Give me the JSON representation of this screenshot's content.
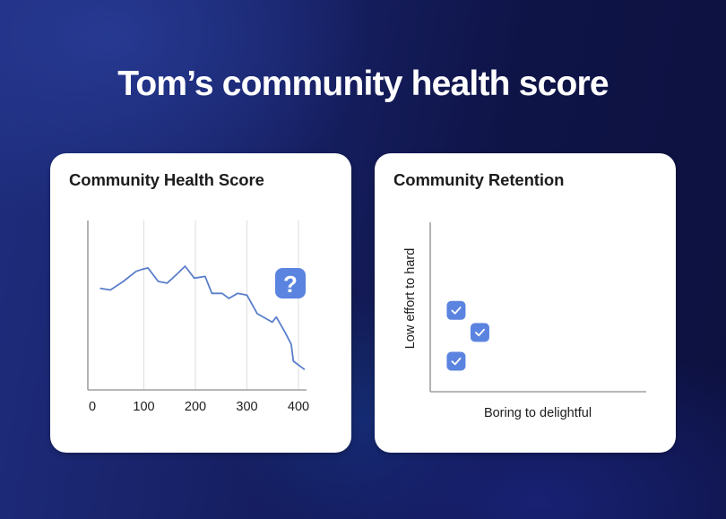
{
  "page": {
    "title": "Tom’s community health score"
  },
  "colors": {
    "accent": "#5B84E0",
    "line": "#5A7ECB",
    "axis": "#9a9a9a",
    "grid": "#dedede",
    "text": "#1c1c1e",
    "card": "#ffffff"
  },
  "cards": [
    {
      "title": "Community Health Score",
      "badge_icon": "question-mark-icon",
      "badge_glyph": "?"
    },
    {
      "title": "Community Retention",
      "marker_icon": "checkmark-icon"
    }
  ],
  "chart_data": [
    {
      "type": "line",
      "title": "Community Health Score",
      "xlabel": "",
      "ylabel": "",
      "x_ticks": [
        "0",
        "100",
        "200",
        "300",
        "400"
      ],
      "xlim": [
        0,
        430
      ],
      "grid": "vertical lines at x ticks",
      "annotation": "question mark badge near x≈400",
      "series": [
        {
          "name": "Health score",
          "x": [
            15,
            35,
            60,
            85,
            95,
            108,
            128,
            145,
            163,
            180,
            198,
            219,
            232,
            252,
            265,
            282,
            300,
            320,
            349,
            357,
            374,
            386,
            390,
            412
          ],
          "y": [
            60,
            59,
            64,
            70,
            71,
            72,
            64,
            63,
            68,
            73,
            66,
            67,
            57,
            57,
            54,
            57,
            56,
            45,
            40,
            43,
            34,
            27,
            17,
            12
          ]
        }
      ],
      "y_note": "y axis unlabeled; values estimated on a 0-100 relative scale"
    },
    {
      "type": "scatter",
      "title": "Community Retention",
      "xlabel": "Boring to delightful",
      "ylabel": "Low effort to hard",
      "xlim": [
        0,
        100
      ],
      "ylim": [
        0,
        100
      ],
      "grid": false,
      "marker": "checkbox",
      "points": [
        {
          "x": 12,
          "y": 48
        },
        {
          "x": 23,
          "y": 35
        },
        {
          "x": 12,
          "y": 18
        }
      ]
    }
  ]
}
